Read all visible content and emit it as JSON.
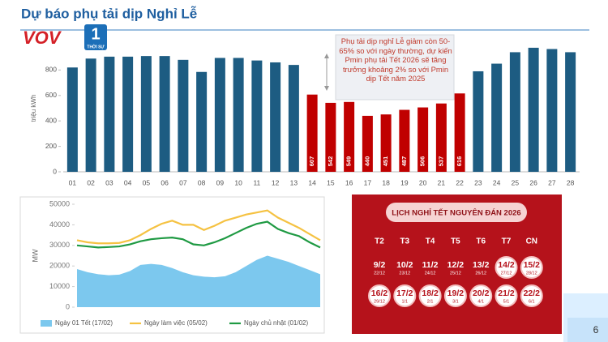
{
  "header": {
    "title": "Dự báo phụ tải dịp Nghỉ Lễ",
    "page_number": "6"
  },
  "logo": {
    "brand": "VOV",
    "channel": "1",
    "caption": "THỜI SỰ"
  },
  "chart_data": [
    {
      "type": "bar",
      "ylabel": "triệu kWh",
      "categories": [
        "01",
        "02",
        "03",
        "04",
        "05",
        "06",
        "07",
        "08",
        "09",
        "10",
        "11",
        "12",
        "13",
        "14",
        "15",
        "16",
        "17",
        "18",
        "19",
        "20",
        "21",
        "22",
        "23",
        "24",
        "25",
        "26",
        "27",
        "28"
      ],
      "values": [
        820,
        890,
        905,
        905,
        910,
        910,
        880,
        785,
        895,
        895,
        875,
        860,
        840,
        607,
        542,
        549,
        440,
        451,
        487,
        506,
        537,
        616,
        790,
        850,
        940,
        975,
        965,
        940
      ],
      "value_labels": [
        null,
        null,
        null,
        null,
        null,
        null,
        null,
        null,
        null,
        null,
        null,
        null,
        null,
        "607",
        "542",
        "549",
        "440",
        "451",
        "487",
        "506",
        "537",
        "616",
        null,
        null,
        null,
        null,
        null,
        null
      ],
      "colors": [
        "#1d5c82",
        "#1d5c82",
        "#1d5c82",
        "#1d5c82",
        "#1d5c82",
        "#1d5c82",
        "#1d5c82",
        "#1d5c82",
        "#1d5c82",
        "#1d5c82",
        "#1d5c82",
        "#1d5c82",
        "#1d5c82",
        "#c00000",
        "#c00000",
        "#c00000",
        "#c00000",
        "#c00000",
        "#c00000",
        "#c00000",
        "#c00000",
        "#c00000",
        "#1d5c82",
        "#1d5c82",
        "#1d5c82",
        "#1d5c82",
        "#1d5c82",
        "#1d5c82"
      ],
      "ylim": [
        0,
        1000
      ],
      "yticks": [
        0,
        200,
        400,
        600,
        800
      ],
      "annotation": "Phụ tải dịp nghỉ Lễ giảm còn 50-65% so với ngày thường, dự kiến Pmin phụ tải Tết 2026 sẽ tăng trưởng khoảng 2% so với Pmin dịp Tết năm 2025"
    },
    {
      "type": "line",
      "ylabel": "MW",
      "categories": [
        null,
        null,
        null,
        null,
        null,
        null,
        null,
        null,
        null,
        null,
        null,
        null,
        null,
        null,
        null,
        null,
        null,
        null,
        null,
        null,
        null,
        null,
        null,
        null
      ],
      "series": [
        {
          "name": "Ngày 01 Tết (17/02)",
          "color": "#7cc8ee",
          "area": true,
          "values": [
            18500,
            17000,
            16000,
            15500,
            15800,
            17500,
            20500,
            21000,
            20500,
            19000,
            17000,
            15500,
            14800,
            14500,
            15000,
            17000,
            20000,
            23000,
            25000,
            23500,
            22000,
            20000,
            18000,
            16000
          ]
        },
        {
          "name": "Ngày làm việc (05/02)",
          "color": "#f5c242",
          "values": [
            32500,
            31500,
            31000,
            31000,
            31200,
            32500,
            35000,
            38000,
            40500,
            42000,
            40000,
            40000,
            37500,
            39500,
            42000,
            43500,
            45000,
            46000,
            47000,
            43500,
            41000,
            38500,
            35500,
            32500
          ]
        },
        {
          "name": "Ngày chủ nhật (01/02)",
          "color": "#1f9a43",
          "values": [
            30000,
            29500,
            29000,
            29200,
            29500,
            30500,
            32000,
            33000,
            33500,
            33800,
            33000,
            30500,
            30000,
            31500,
            33500,
            36000,
            38500,
            40500,
            41500,
            38000,
            36000,
            34500,
            31500,
            29000
          ]
        }
      ],
      "ylim": [
        0,
        50000
      ],
      "yticks": [
        0,
        10000,
        20000,
        30000,
        40000,
        50000
      ],
      "legend": "bottom"
    }
  ],
  "calendar": {
    "title": "LỊCH NGHỈ TẾT NGUYÊN ĐÁN 2026",
    "weekdays": [
      "T2",
      "T3",
      "T4",
      "T5",
      "T6",
      "T7",
      "CN"
    ],
    "weeks": [
      [
        {
          "date": "9/2",
          "lunar": "22/12"
        },
        {
          "date": "10/2",
          "lunar": "23/12"
        },
        {
          "date": "11/2",
          "lunar": "24/12"
        },
        {
          "date": "12/2",
          "lunar": "25/12"
        },
        {
          "date": "13/2",
          "lunar": "26/12"
        },
        {
          "date": "14/2",
          "lunar": "27/12",
          "holiday": true
        },
        {
          "date": "15/2",
          "lunar": "28/12",
          "holiday": true
        }
      ],
      [
        {
          "date": "16/2",
          "lunar": "29/12",
          "holiday": true
        },
        {
          "date": "17/2",
          "lunar": "1/1",
          "holiday": true
        },
        {
          "date": "18/2",
          "lunar": "2/1",
          "holiday": true
        },
        {
          "date": "19/2",
          "lunar": "3/1",
          "holiday": true
        },
        {
          "date": "20/2",
          "lunar": "4/1",
          "holiday": true
        },
        {
          "date": "21/2",
          "lunar": "5/1",
          "holiday": true
        },
        {
          "date": "22/2",
          "lunar": "6/1",
          "holiday": true
        }
      ]
    ]
  }
}
